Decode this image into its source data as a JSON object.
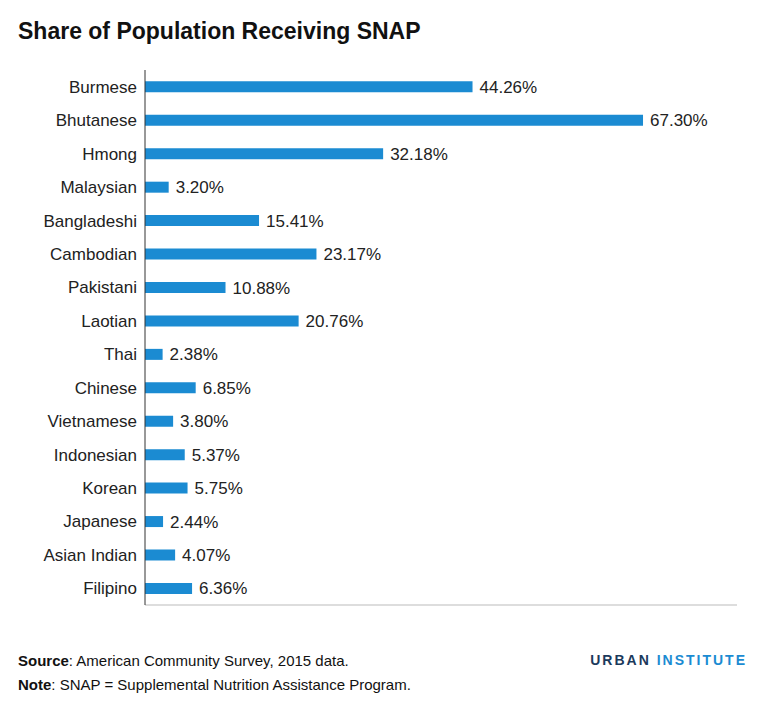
{
  "chart_data": {
    "type": "bar",
    "title": "Share of Population Receiving SNAP",
    "orientation": "horizontal",
    "categories": [
      "Burmese",
      "Bhutanese",
      "Hmong",
      "Malaysian",
      "Bangladeshi",
      "Cambodian",
      "Pakistani",
      "Laotian",
      "Thai",
      "Chinese",
      "Vietnamese",
      "Indonesian",
      "Korean",
      "Japanese",
      "Asian Indian",
      "Filipino"
    ],
    "values": [
      44.26,
      67.3,
      32.18,
      3.2,
      15.41,
      23.17,
      10.88,
      20.76,
      2.38,
      6.85,
      3.8,
      5.37,
      5.75,
      2.44,
      4.07,
      6.36
    ],
    "value_labels": [
      "44.26%",
      "67.30%",
      "32.18%",
      "3.20%",
      "15.41%",
      "23.17%",
      "10.88%",
      "20.76%",
      "2.38%",
      "6.85%",
      "3.80%",
      "5.37%",
      "5.75%",
      "2.44%",
      "4.07%",
      "6.36%"
    ],
    "color": "#1b8bd2",
    "xlim": [
      0,
      80
    ],
    "data_labels": true,
    "tick_labels": "y",
    "grid": false,
    "source": "Source: American Community Survey, 2015 data.",
    "note": "Note: SNAP = Supplemental Nutrition Assistance Program.",
    "logo": "URBAN INSTITUTE"
  }
}
